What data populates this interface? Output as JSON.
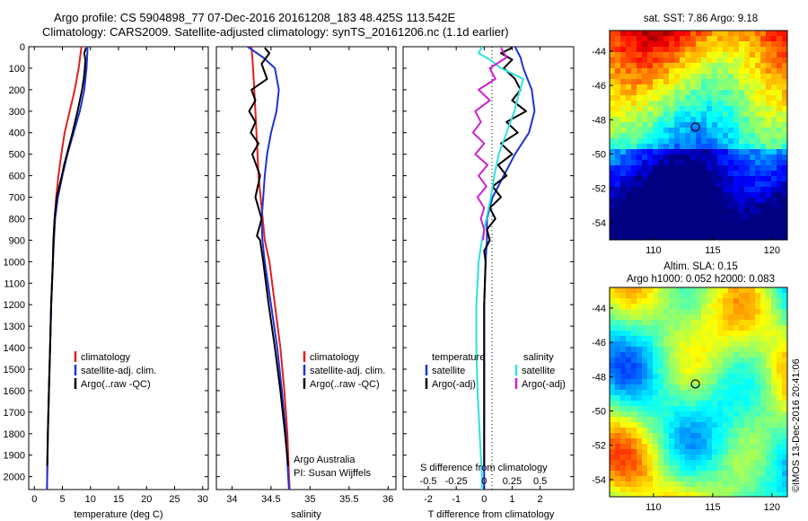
{
  "header": {
    "line1": "Argo profile: CS 5904898_77 07-Dec-2016 20161208_183 48.425S 113.542E",
    "line2": "Climatology: CARS2009. Satellite-adjusted climatology: synTS_20161206.nc (1.1d earlier)"
  },
  "footer": {
    "credit": "Argo Australia",
    "pi": "PI: Susan Wijffels",
    "timestamp": "©IMOS 13-Dec-2016 20:41:06"
  },
  "colors": {
    "climatology": "#e02020",
    "satellite": "#1f33d6",
    "argo": "#000000",
    "salinity_satellite": "#30e0e0",
    "salinity_argo": "#d020d0"
  },
  "chart_data": [
    {
      "type": "line",
      "id": "temperature",
      "xlabel": "temperature (deg C)",
      "ylabel": "",
      "xlim": [
        -1,
        31
      ],
      "ylim": [
        2060,
        0
      ],
      "xticks": [
        "0",
        "5",
        "10",
        "15",
        "20",
        "25",
        "30"
      ],
      "yticks": [
        "0",
        "100",
        "200",
        "300",
        "400",
        "500",
        "600",
        "700",
        "800",
        "900",
        "1000",
        "1100",
        "1200",
        "1300",
        "1400",
        "1500",
        "1600",
        "1700",
        "1800",
        "1900",
        "2000"
      ],
      "legend": [
        "climatology",
        "satellite-adj. clim.",
        "Argo(..raw -QC)"
      ],
      "series": [
        {
          "name": "climatology",
          "depth": [
            0,
            100,
            200,
            300,
            400,
            500,
            600,
            700,
            800,
            900,
            1000,
            1200,
            1400,
            1600,
            1800,
            2000,
            2060
          ],
          "values": [
            8.4,
            7.9,
            7.2,
            6.3,
            5.4,
            4.8,
            4.3,
            3.9,
            3.6,
            3.4,
            3.3,
            3.0,
            2.8,
            2.6,
            2.4,
            2.3,
            2.25
          ]
        },
        {
          "name": "satellite-adj. clim.",
          "depth": [
            0,
            100,
            200,
            300,
            400,
            500,
            600,
            700,
            800,
            900,
            1000,
            1200,
            1400,
            1600,
            1800,
            2000,
            2060
          ],
          "values": [
            9.5,
            9.3,
            8.9,
            8.1,
            7.0,
            5.9,
            5.0,
            4.2,
            3.7,
            3.5,
            3.3,
            3.0,
            2.8,
            2.6,
            2.4,
            2.3,
            2.25
          ]
        },
        {
          "name": "Argo(..raw -QC)",
          "depth": [
            5,
            30,
            60,
            100,
            150,
            200,
            300,
            400,
            500,
            550,
            600,
            700,
            800,
            900,
            1000,
            1200,
            1400,
            1600,
            1800,
            1950
          ],
          "values": [
            9.2,
            8.9,
            9.1,
            9.0,
            8.8,
            8.5,
            7.7,
            6.8,
            5.8,
            5.3,
            4.9,
            4.0,
            3.6,
            3.4,
            3.3,
            3.0,
            2.8,
            2.6,
            2.4,
            2.3
          ]
        }
      ]
    },
    {
      "type": "line",
      "id": "salinity",
      "xlabel": "salinity",
      "ylabel": "",
      "xlim": [
        33.8,
        36.1
      ],
      "ylim": [
        2060,
        0
      ],
      "xticks": [
        "34",
        "34.5",
        "35",
        "35.5",
        "36"
      ],
      "legend": [
        "climatology",
        "satellite-adj. clim.",
        "Argo(..raw -QC)"
      ],
      "series": [
        {
          "name": "climatology",
          "depth": [
            0,
            100,
            300,
            600,
            900,
            1000,
            1200,
            1400,
            1600,
            1800,
            2000,
            2060
          ],
          "values": [
            34.25,
            34.27,
            34.3,
            34.34,
            34.42,
            34.48,
            34.55,
            34.62,
            34.67,
            34.71,
            34.73,
            34.74
          ]
        },
        {
          "name": "satellite-adj. clim.",
          "depth": [
            0,
            50,
            100,
            200,
            300,
            400,
            500,
            600,
            700,
            800,
            900,
            1000,
            1200,
            1400,
            1600,
            1800,
            2000,
            2060
          ],
          "values": [
            34.2,
            34.4,
            34.55,
            34.6,
            34.57,
            34.5,
            34.45,
            34.42,
            34.4,
            34.38,
            34.39,
            34.42,
            34.5,
            34.58,
            34.64,
            34.69,
            34.72,
            34.73
          ]
        },
        {
          "name": "Argo(..raw -QC)",
          "depth": [
            5,
            30,
            80,
            150,
            200,
            250,
            300,
            350,
            400,
            450,
            500,
            600,
            700,
            800,
            880,
            900,
            1000,
            1200,
            1400,
            1600,
            1800,
            1950
          ],
          "values": [
            34.42,
            34.48,
            34.38,
            34.45,
            34.25,
            34.3,
            34.22,
            34.3,
            34.24,
            34.34,
            34.26,
            34.36,
            34.3,
            34.38,
            34.32,
            34.36,
            34.4,
            34.47,
            34.55,
            34.62,
            34.68,
            34.72
          ]
        }
      ]
    },
    {
      "type": "line",
      "id": "difference",
      "xlabel": "T difference from climatology",
      "top_label": "S difference from climatology",
      "ylabel": "",
      "xlim": [
        -2.9,
        3.2
      ],
      "ylim": [
        2060,
        0
      ],
      "xticks": [
        "-2",
        "-1",
        "0",
        "1",
        "2"
      ],
      "sticks": [
        "-0.5",
        "-0.25",
        "0",
        "0.25",
        "0.5"
      ],
      "legend_temperature": {
        "title": "temperature",
        "items": [
          "satellite",
          "Argo(-adj)"
        ]
      },
      "legend_salinity": {
        "title": "salinity",
        "items": [
          "satellite",
          "Argo(-adj)"
        ]
      },
      "series": [
        {
          "name": "temperature satellite",
          "depth": [
            0,
            50,
            100,
            200,
            300,
            400,
            500,
            600,
            700,
            800,
            900,
            1000,
            1200,
            1400,
            1600,
            1800,
            2000,
            2060
          ],
          "values": [
            1.1,
            1.3,
            1.4,
            1.7,
            1.8,
            1.6,
            1.1,
            0.7,
            0.3,
            0.1,
            0.1,
            0.05,
            0.0,
            0.0,
            0.0,
            0.0,
            0.0,
            0.0
          ]
        },
        {
          "name": "temperature Argo(-adj)",
          "depth": [
            5,
            30,
            60,
            100,
            150,
            200,
            250,
            300,
            350,
            400,
            450,
            500,
            550,
            600,
            650,
            700,
            750,
            800,
            850,
            900,
            950,
            1000,
            1200,
            1400,
            1600,
            1800,
            1950
          ],
          "values": [
            1.0,
            0.6,
            1.0,
            0.7,
            1.1,
            1.3,
            1.0,
            1.5,
            0.8,
            1.2,
            0.6,
            1.0,
            0.5,
            0.8,
            0.3,
            0.6,
            0.2,
            0.4,
            0.1,
            0.2,
            0.0,
            0.05,
            0.0,
            0.0,
            0.0,
            0.0,
            0.0
          ]
        },
        {
          "name": "salinity satellite",
          "depth": [
            0,
            30,
            60,
            100,
            150,
            200,
            300,
            400,
            500,
            600,
            700,
            800,
            900,
            1000,
            1200,
            1400,
            1600,
            1800,
            2000,
            2060
          ],
          "values": [
            -0.02,
            -0.05,
            0.05,
            0.15,
            0.35,
            0.32,
            0.27,
            0.2,
            0.13,
            0.09,
            0.06,
            0.02,
            -0.02,
            -0.05,
            -0.07,
            -0.07,
            -0.06,
            -0.04,
            -0.02,
            -0.02
          ]
        },
        {
          "name": "salinity Argo(-adj)",
          "depth": [
            5,
            50,
            100,
            150,
            200,
            250,
            300,
            350,
            400,
            450,
            500,
            550,
            600,
            650,
            700,
            750,
            800,
            850,
            900
          ],
          "values": [
            0.15,
            0.2,
            0.05,
            0.1,
            -0.05,
            0.05,
            -0.08,
            -0.03,
            -0.1,
            0.0,
            -0.08,
            0.03,
            -0.05,
            0.02,
            -0.06,
            0.0,
            -0.03,
            0.0,
            -0.01
          ]
        }
      ]
    }
  ],
  "maps": [
    {
      "id": "sst",
      "title": "sat. SST: 7.86 Argo: 9.18",
      "xticks": [
        "110",
        "115",
        "120"
      ],
      "yticks": [
        "-44",
        "-46",
        "-48",
        "-50",
        "-52",
        "-54"
      ],
      "lon_range": [
        106.3,
        121.3
      ],
      "lat_range": [
        -55,
        -42.8
      ],
      "marker": {
        "lon": 113.542,
        "lat": -48.425
      }
    },
    {
      "id": "sla",
      "title_line1": "Altim. SLA: 0.15",
      "title_line2": "Argo h1000: 0.052 h2000: 0.083",
      "xticks": [
        "110",
        "115",
        "120"
      ],
      "yticks": [
        "-44",
        "-46",
        "-48",
        "-50",
        "-52",
        "-54"
      ],
      "lon_range": [
        106.3,
        121.3
      ],
      "lat_range": [
        -55,
        -42.8
      ],
      "marker": {
        "lon": 113.542,
        "lat": -48.425
      }
    }
  ]
}
